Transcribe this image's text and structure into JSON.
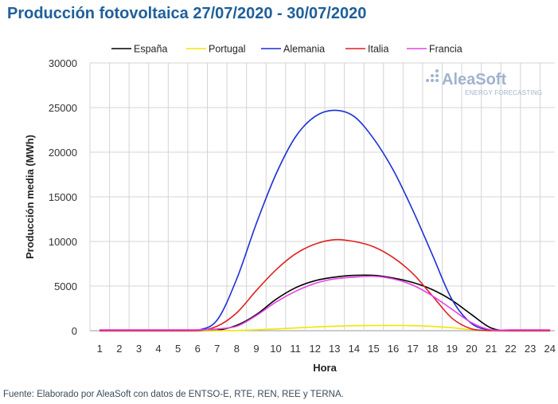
{
  "title": "Producción fotovoltaica 27/07/2020 - 30/07/2020",
  "source": "Fuente: Elaborado por AleaSoft con datos de ENTSO-E, RTE, REN, REE y TERNA.",
  "logo": {
    "name": "AleaSoft",
    "tagline": "ENERGY FORECASTING"
  },
  "chart_data": {
    "type": "line",
    "xlabel": "Hora",
    "ylabel": "Producción media (MWh)",
    "x": [
      1,
      2,
      3,
      4,
      5,
      6,
      7,
      8,
      9,
      10,
      11,
      12,
      13,
      14,
      15,
      16,
      17,
      18,
      19,
      20,
      21,
      22,
      23,
      24
    ],
    "ylim": [
      0,
      30000
    ],
    "yticks": [
      0,
      5000,
      10000,
      15000,
      20000,
      25000,
      30000
    ],
    "grid": true,
    "legend_position": "top",
    "series": [
      {
        "name": "España",
        "color": "#000000",
        "values": [
          0,
          0,
          0,
          0,
          0,
          0,
          40,
          600,
          1800,
          3500,
          4800,
          5600,
          6000,
          6200,
          6200,
          5900,
          5400,
          4600,
          3400,
          1800,
          300,
          0,
          0,
          0
        ]
      },
      {
        "name": "Portugal",
        "color": "#f2e600",
        "values": [
          0,
          0,
          0,
          0,
          0,
          0,
          0,
          20,
          100,
          200,
          300,
          420,
          500,
          560,
          580,
          590,
          560,
          480,
          330,
          120,
          10,
          0,
          0,
          0
        ]
      },
      {
        "name": "Alemania",
        "color": "#1c2fd6",
        "values": [
          0,
          0,
          0,
          0,
          0,
          50,
          1200,
          5800,
          12000,
          17500,
          21700,
          24000,
          24700,
          24000,
          21500,
          18000,
          13500,
          8500,
          3500,
          800,
          50,
          0,
          0,
          0
        ]
      },
      {
        "name": "Italia",
        "color": "#e02020",
        "values": [
          0,
          0,
          0,
          0,
          0,
          0,
          500,
          2000,
          4500,
          6800,
          8600,
          9700,
          10200,
          10000,
          9400,
          8200,
          6400,
          3900,
          1400,
          200,
          0,
          0,
          0,
          0
        ]
      },
      {
        "name": "Francia",
        "color": "#e640e6",
        "values": [
          100,
          100,
          100,
          100,
          100,
          100,
          200,
          500,
          1700,
          3200,
          4400,
          5300,
          5800,
          6000,
          6100,
          5800,
          5100,
          3900,
          2400,
          900,
          100,
          100,
          100,
          100
        ]
      }
    ]
  }
}
